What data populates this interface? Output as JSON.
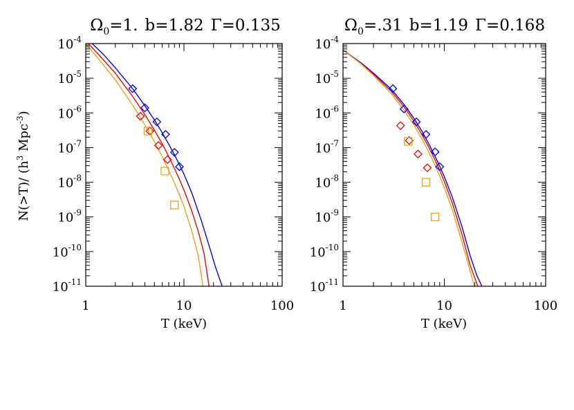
{
  "chart_data": [
    {
      "type": "scatter",
      "title": {
        "omega_sub": "0",
        "omega_val": "1.",
        "b": "b=1.82",
        "gamma": "Γ=0.135"
      },
      "xlabel": "T (keV)",
      "ylabel": {
        "pre": "N(>T)/ (h",
        "sup1": "3",
        "mid": " Mpc",
        "sup2": "-3",
        "post": ")"
      },
      "x_scale": "log",
      "y_scale": "log",
      "xlim": [
        1,
        100
      ],
      "ylim": [
        1e-11,
        0.0001
      ],
      "x_tick_labels": [
        {
          "value": 1,
          "label": "1"
        },
        {
          "value": 10,
          "label": "10"
        },
        {
          "value": 100,
          "label": "100"
        }
      ],
      "y_tick_labels": [
        {
          "value": 0.0001,
          "base": "10",
          "exp": "-4"
        },
        {
          "value": 1e-05,
          "base": "10",
          "exp": "-5"
        },
        {
          "value": 1e-06,
          "base": "10",
          "exp": "-6"
        },
        {
          "value": 1e-07,
          "base": "10",
          "exp": "-7"
        },
        {
          "value": 1e-08,
          "base": "10",
          "exp": "-8"
        },
        {
          "value": 1e-09,
          "base": "10",
          "exp": "-9"
        },
        {
          "value": 1e-10,
          "base": "10",
          "exp": "-10"
        },
        {
          "value": 1e-11,
          "base": "10",
          "exp": "-11"
        }
      ],
      "curves": [
        {
          "color": "#0000ff",
          "x": [
            1,
            1.5,
            2,
            3,
            4,
            5,
            6,
            7,
            8,
            9,
            10,
            12,
            15,
            18,
            21,
            24.5
          ],
          "y": [
            0.00015,
            5e-05,
            2e-05,
            5e-06,
            1.6e-06,
            6.3e-07,
            2.7e-07,
            1.25e-07,
            6.2e-08,
            3.2e-08,
            1.7e-08,
            5e-09,
            8e-10,
            1.5e-10,
            3.5e-11,
            1e-11
          ]
        },
        {
          "color": "#ff0000",
          "x": [
            1,
            1.5,
            2,
            3,
            4,
            5,
            6,
            7,
            8,
            9,
            10,
            12,
            14,
            16,
            18
          ],
          "y": [
            0.00012,
            3.5e-05,
            1.4e-05,
            3e-06,
            9e-07,
            3.2e-07,
            1.3e-07,
            5.5e-08,
            2.5e-08,
            1.2e-08,
            6e-09,
            1.5e-09,
            3.8e-10,
            9e-11,
            1e-11
          ]
        },
        {
          "color": "#e8a317",
          "x": [
            1,
            1.5,
            2,
            3,
            4,
            5,
            6,
            7,
            8,
            9,
            10,
            12,
            14,
            15.6
          ],
          "y": [
            0.0001,
            2.5e-05,
            9e-06,
            1.7e-06,
            4.5e-07,
            1.5e-07,
            5.5e-08,
            2.2e-08,
            9.5e-09,
            4.3e-09,
            2e-09,
            4e-10,
            7.5e-11,
            1e-11
          ]
        }
      ],
      "points": [
        {
          "marker": "diamond",
          "color": "#0000ff",
          "x": [
            3.0,
            4.0,
            5.3,
            6.5,
            8.0,
            9.0
          ],
          "y": [
            5e-06,
            1.4e-06,
            5.5e-07,
            2.4e-07,
            7.3e-08,
            2.8e-08
          ]
        },
        {
          "marker": "diamond",
          "color": "#ff0000",
          "x": [
            3.6,
            4.5,
            5.5,
            6.8
          ],
          "y": [
            8e-07,
            3e-07,
            1.15e-07,
            4.5e-08
          ]
        },
        {
          "marker": "square",
          "color": "#e8a317",
          "x": [
            4.3,
            6.4,
            8.0
          ],
          "y": [
            3e-07,
            2.1e-08,
            2.2e-09
          ]
        }
      ]
    },
    {
      "type": "scatter",
      "title": {
        "omega_sub": "0",
        "omega_val": ".31",
        "b": "b=1.19",
        "gamma": "Γ=0.168"
      },
      "xlabel": "T (keV)",
      "x_scale": "log",
      "y_scale": "log",
      "xlim": [
        1,
        100
      ],
      "ylim": [
        1e-11,
        0.0001
      ],
      "x_tick_labels": [
        {
          "value": 1,
          "label": "1"
        },
        {
          "value": 10,
          "label": "10"
        },
        {
          "value": 100,
          "label": "100"
        }
      ],
      "y_tick_labels": [
        {
          "value": 0.0001,
          "base": "10",
          "exp": "-4"
        },
        {
          "value": 1e-05,
          "base": "10",
          "exp": "-5"
        },
        {
          "value": 1e-06,
          "base": "10",
          "exp": "-6"
        },
        {
          "value": 1e-07,
          "base": "10",
          "exp": "-7"
        },
        {
          "value": 1e-08,
          "base": "10",
          "exp": "-8"
        },
        {
          "value": 1e-09,
          "base": "10",
          "exp": "-9"
        },
        {
          "value": 1e-10,
          "base": "10",
          "exp": "-10"
        },
        {
          "value": 1e-11,
          "base": "10",
          "exp": "-11"
        }
      ],
      "curves": [
        {
          "color": "#0000ff",
          "x": [
            1,
            1.5,
            2,
            3,
            4,
            5,
            6,
            7,
            8,
            9,
            10,
            12,
            15,
            18,
            21,
            23.5
          ],
          "y": [
            6.5e-05,
            2.8e-05,
            1.4e-05,
            4.8e-06,
            1.75e-06,
            7e-07,
            3e-07,
            1.3e-07,
            6e-08,
            2.9e-08,
            1.45e-08,
            3.7e-09,
            5e-10,
            7.5e-11,
            2e-11,
            1e-11
          ]
        },
        {
          "color": "#ff0000",
          "x": [
            1,
            1.5,
            2,
            3,
            4,
            5,
            6,
            7,
            8,
            9,
            10,
            12,
            15,
            18,
            21.4
          ],
          "y": [
            6.5e-05,
            2.7e-05,
            1.3e-05,
            4.2e-06,
            1.5e-06,
            5.8e-07,
            2.4e-07,
            1.05e-07,
            4.7e-08,
            2.2e-08,
            1.05e-08,
            2.5e-09,
            3e-10,
            4e-11,
            1e-11
          ]
        },
        {
          "color": "#e8a317",
          "x": [
            1,
            1.5,
            2,
            3,
            4,
            5,
            6,
            7,
            8,
            9,
            10,
            12,
            15,
            19.8
          ],
          "y": [
            6.5e-05,
            2.6e-05,
            1.2e-05,
            3.6e-06,
            1.2e-06,
            4.5e-07,
            1.8e-07,
            7.5e-08,
            3.3e-08,
            1.5e-08,
            7e-09,
            1.6e-09,
            1.8e-10,
            1e-11
          ]
        }
      ],
      "points": [
        {
          "marker": "diamond",
          "color": "#0000ff",
          "x": [
            3.1,
            4.0,
            5.3,
            6.6,
            8.1,
            9.0
          ],
          "y": [
            5e-06,
            1.3e-06,
            5.5e-07,
            2.4e-07,
            7.5e-08,
            2.8e-08
          ]
        },
        {
          "marker": "diamond",
          "color": "#ff0000",
          "x": [
            3.7,
            4.5,
            5.5,
            6.8
          ],
          "y": [
            4.3e-07,
            1.6e-07,
            6.5e-08,
            2.6e-08
          ]
        },
        {
          "marker": "square",
          "color": "#e8a317",
          "x": [
            4.4,
            6.6,
            8.1
          ],
          "y": [
            1.5e-07,
            1e-08,
            1e-09
          ]
        }
      ]
    }
  ]
}
